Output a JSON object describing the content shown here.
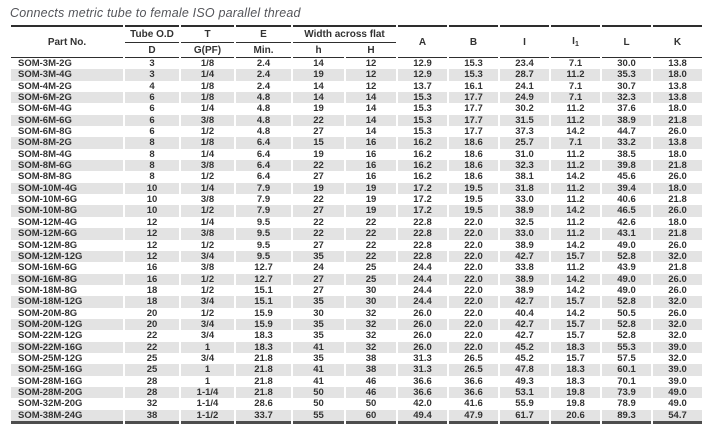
{
  "title": "Connects metric tube to female ISO parallel thread",
  "colors": {
    "stripe": "#e3e3e3",
    "text": "#333333",
    "rule_dark": "#2e2e2e",
    "rule_bottom": "#4d4d4d",
    "title": "#54555a"
  },
  "table": {
    "header": {
      "part_no": "Part No.",
      "tube_od": "Tube O.D",
      "t": "T",
      "e": "E",
      "width_across_flat": "Width across flat",
      "d": "D",
      "g_pf": "G(PF)",
      "min": "Min.",
      "h_small": "h",
      "h_cap": "H",
      "a": "A",
      "b": "B",
      "i": "I",
      "i1_base": "I",
      "i1_sub": "1",
      "l": "L",
      "k": "K"
    },
    "rows": [
      [
        "SOM-3M-2G",
        "3",
        "1/8",
        "2.4",
        "14",
        "12",
        "12.9",
        "15.3",
        "23.4",
        "7.1",
        "30.0",
        "13.8"
      ],
      [
        "SOM-3M-4G",
        "3",
        "1/4",
        "2.4",
        "19",
        "12",
        "12.9",
        "15.3",
        "28.7",
        "11.2",
        "35.3",
        "18.0"
      ],
      [
        "SOM-4M-2G",
        "4",
        "1/8",
        "2.4",
        "14",
        "12",
        "13.7",
        "16.1",
        "24.1",
        "7.1",
        "30.7",
        "13.8"
      ],
      [
        "SOM-6M-2G",
        "6",
        "1/8",
        "4.8",
        "14",
        "14",
        "15.3",
        "17.7",
        "24.9",
        "7.1",
        "32.3",
        "13.8"
      ],
      [
        "SOM-6M-4G",
        "6",
        "1/4",
        "4.8",
        "19",
        "14",
        "15.3",
        "17.7",
        "30.2",
        "11.2",
        "37.6",
        "18.0"
      ],
      [
        "SOM-6M-6G",
        "6",
        "3/8",
        "4.8",
        "22",
        "14",
        "15.3",
        "17.7",
        "31.5",
        "11.2",
        "38.9",
        "21.8"
      ],
      [
        "SOM-6M-8G",
        "6",
        "1/2",
        "4.8",
        "27",
        "14",
        "15.3",
        "17.7",
        "37.3",
        "14.2",
        "44.7",
        "26.0"
      ],
      [
        "SOM-8M-2G",
        "8",
        "1/8",
        "6.4",
        "15",
        "16",
        "16.2",
        "18.6",
        "25.7",
        "7.1",
        "33.2",
        "13.8"
      ],
      [
        "SOM-8M-4G",
        "8",
        "1/4",
        "6.4",
        "19",
        "16",
        "16.2",
        "18.6",
        "31.0",
        "11.2",
        "38.5",
        "18.0"
      ],
      [
        "SOM-8M-6G",
        "8",
        "3/8",
        "6.4",
        "22",
        "16",
        "16.2",
        "18.6",
        "32.3",
        "11.2",
        "39.8",
        "21.8"
      ],
      [
        "SOM-8M-8G",
        "8",
        "1/2",
        "6.4",
        "27",
        "16",
        "16.2",
        "18.6",
        "38.1",
        "14.2",
        "45.6",
        "26.0"
      ],
      [
        "SOM-10M-4G",
        "10",
        "1/4",
        "7.9",
        "19",
        "19",
        "17.2",
        "19.5",
        "31.8",
        "11.2",
        "39.4",
        "18.0"
      ],
      [
        "SOM-10M-6G",
        "10",
        "3/8",
        "7.9",
        "22",
        "19",
        "17.2",
        "19.5",
        "33.0",
        "11.2",
        "40.6",
        "21.8"
      ],
      [
        "SOM-10M-8G",
        "10",
        "1/2",
        "7.9",
        "27",
        "19",
        "17.2",
        "19.5",
        "38.9",
        "14.2",
        "46.5",
        "26.0"
      ],
      [
        "SOM-12M-4G",
        "12",
        "1/4",
        "9.5",
        "22",
        "22",
        "22.8",
        "22.0",
        "32.5",
        "11.2",
        "42.6",
        "18.0"
      ],
      [
        "SOM-12M-6G",
        "12",
        "3/8",
        "9.5",
        "22",
        "22",
        "22.8",
        "22.0",
        "33.0",
        "11.2",
        "43.1",
        "21.8"
      ],
      [
        "SOM-12M-8G",
        "12",
        "1/2",
        "9.5",
        "27",
        "22",
        "22.8",
        "22.0",
        "38.9",
        "14.2",
        "49.0",
        "26.0"
      ],
      [
        "SOM-12M-12G",
        "12",
        "3/4",
        "9.5",
        "35",
        "22",
        "22.8",
        "22.0",
        "42.7",
        "15.7",
        "52.8",
        "32.0"
      ],
      [
        "SOM-16M-6G",
        "16",
        "3/8",
        "12.7",
        "24",
        "25",
        "24.4",
        "22.0",
        "33.8",
        "11.2",
        "43.9",
        "21.8"
      ],
      [
        "SOM-16M-8G",
        "16",
        "1/2",
        "12.7",
        "27",
        "25",
        "24.4",
        "22.0",
        "38.9",
        "14.2",
        "49.0",
        "26.0"
      ],
      [
        "SOM-18M-8G",
        "18",
        "1/2",
        "15.1",
        "27",
        "30",
        "24.4",
        "22.0",
        "38.9",
        "14.2",
        "49.0",
        "26.0"
      ],
      [
        "SOM-18M-12G",
        "18",
        "3/4",
        "15.1",
        "35",
        "30",
        "24.4",
        "22.0",
        "42.7",
        "15.7",
        "52.8",
        "32.0"
      ],
      [
        "SOM-20M-8G",
        "20",
        "1/2",
        "15.9",
        "30",
        "32",
        "26.0",
        "22.0",
        "40.4",
        "14.2",
        "50.5",
        "26.0"
      ],
      [
        "SOM-20M-12G",
        "20",
        "3/4",
        "15.9",
        "35",
        "32",
        "26.0",
        "22.0",
        "42.7",
        "15.7",
        "52.8",
        "32.0"
      ],
      [
        "SOM-22M-12G",
        "22",
        "3/4",
        "18.3",
        "35",
        "32",
        "26.0",
        "22.0",
        "42.7",
        "15.7",
        "52.8",
        "32.0"
      ],
      [
        "SOM-22M-16G",
        "22",
        "1",
        "18.3",
        "41",
        "32",
        "26.0",
        "22.0",
        "45.2",
        "18.3",
        "55.3",
        "39.0"
      ],
      [
        "SOM-25M-12G",
        "25",
        "3/4",
        "21.8",
        "35",
        "38",
        "31.3",
        "26.5",
        "45.2",
        "15.7",
        "57.5",
        "32.0"
      ],
      [
        "SOM-25M-16G",
        "25",
        "1",
        "21.8",
        "41",
        "38",
        "31.3",
        "26.5",
        "47.8",
        "18.3",
        "60.1",
        "39.0"
      ],
      [
        "SOM-28M-16G",
        "28",
        "1",
        "21.8",
        "41",
        "46",
        "36.6",
        "36.6",
        "49.3",
        "18.3",
        "70.1",
        "39.0"
      ],
      [
        "SOM-28M-20G",
        "28",
        "1-1/4",
        "21.8",
        "50",
        "46",
        "36.6",
        "36.6",
        "53.1",
        "19.8",
        "73.9",
        "49.0"
      ],
      [
        "SOM-32M-20G",
        "32",
        "1-1/4",
        "28.6",
        "50",
        "50",
        "42.0",
        "41.6",
        "55.9",
        "19.8",
        "78.9",
        "49.0"
      ],
      [
        "SOM-38M-24G",
        "38",
        "1-1/2",
        "33.7",
        "55",
        "60",
        "49.4",
        "47.9",
        "61.7",
        "20.6",
        "89.3",
        "54.7"
      ]
    ]
  }
}
